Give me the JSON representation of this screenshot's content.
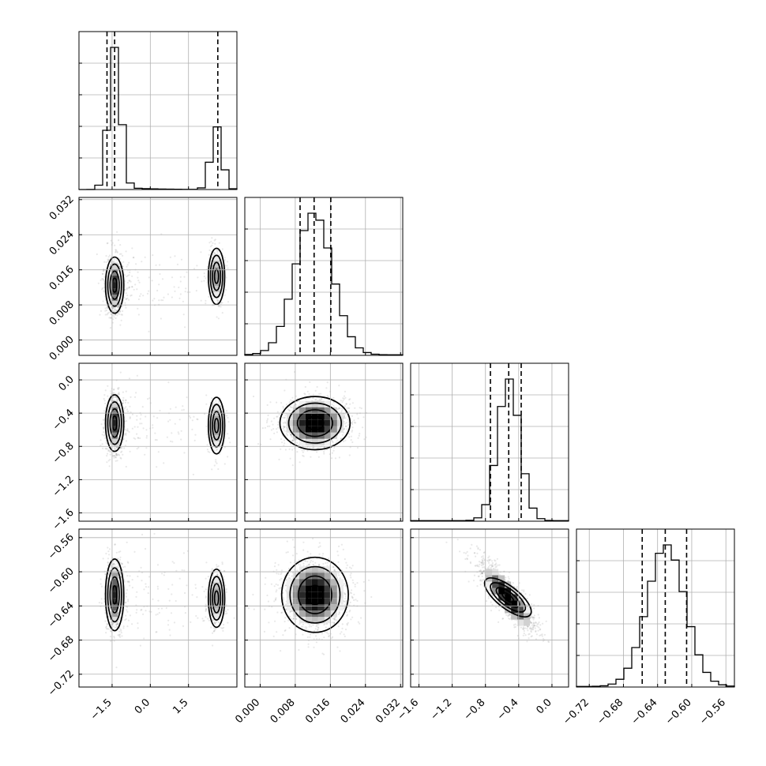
{
  "chart_data": {
    "type": "corner",
    "grid_on": true,
    "parameters": [
      {
        "range": [
          -2.8,
          3.4
        ],
        "ticks": [
          -1.5,
          0.0,
          1.5
        ],
        "tick_labels": [
          "−1.5",
          "0.0",
          "1.5"
        ],
        "histogram_peaks": [
          {
            "center": -1.4,
            "width": 0.22,
            "relative_height": 1.0
          },
          {
            "center": 2.6,
            "width": 0.2,
            "relative_height": 0.45
          }
        ],
        "quantiles": [
          -1.7,
          -1.4,
          2.65
        ]
      },
      {
        "range": [
          -0.0035,
          0.0325
        ],
        "ticks": [
          0.0,
          0.008,
          0.016,
          0.024,
          0.032
        ],
        "tick_labels": [
          "0.000",
          "0.008",
          "0.016",
          "0.024",
          "0.032"
        ],
        "histogram_peaks": [
          {
            "center": 0.0122,
            "width": 0.0042,
            "relative_height": 1.0
          }
        ],
        "quantiles": [
          0.0091,
          0.0123,
          0.0161
        ]
      },
      {
        "range": [
          -1.7,
          0.2
        ],
        "ticks": [
          -1.6,
          -1.2,
          -0.8,
          -0.4,
          0.0
        ],
        "tick_labels": [
          "−1.6",
          "−1.2",
          "−0.8",
          "−0.4",
          "0.0"
        ],
        "histogram_peaks": [
          {
            "center": -0.52,
            "width": 0.13,
            "relative_height": 1.0
          }
        ],
        "quantiles": [
          -0.74,
          -0.52,
          -0.37
        ]
      },
      {
        "range": [
          -0.735,
          -0.55
        ],
        "ticks": [
          -0.72,
          -0.68,
          -0.64,
          -0.6,
          -0.56
        ],
        "tick_labels": [
          "−0.72",
          "−0.68",
          "−0.64",
          "−0.60",
          "−0.56"
        ],
        "histogram_peaks": [
          {
            "center": -0.63,
            "width": 0.022,
            "relative_height": 1.0
          }
        ],
        "quantiles": [
          -0.658,
          -0.631,
          -0.606
        ]
      }
    ],
    "pair_distributions": [
      {
        "x": 0,
        "y": 1,
        "clusters": [
          {
            "center": [
              -1.4,
              0.0125
            ],
            "spread": [
              0.18,
              0.0032
            ],
            "weight": 0.69
          },
          {
            "center": [
              2.6,
              0.0145
            ],
            "spread": [
              0.16,
              0.0032
            ],
            "weight": 0.31
          }
        ]
      },
      {
        "x": 0,
        "y": 2,
        "clusters": [
          {
            "center": [
              -1.4,
              -0.52
            ],
            "spread": [
              0.18,
              0.17
            ],
            "weight": 0.69
          },
          {
            "center": [
              2.6,
              -0.55
            ],
            "spread": [
              0.16,
              0.17
            ],
            "weight": 0.31
          }
        ]
      },
      {
        "x": 0,
        "y": 3,
        "clusters": [
          {
            "center": [
              -1.4,
              -0.627
            ],
            "spread": [
              0.18,
              0.021
            ],
            "weight": 0.69
          },
          {
            "center": [
              2.6,
              -0.631
            ],
            "spread": [
              0.16,
              0.017
            ],
            "weight": 0.31
          }
        ]
      },
      {
        "x": 1,
        "y": 2,
        "clusters": [
          {
            "center": [
              0.0125,
              -0.52
            ],
            "spread": [
              0.004,
              0.16
            ],
            "weight": 1.0
          }
        ]
      },
      {
        "x": 1,
        "y": 3,
        "clusters": [
          {
            "center": [
              0.0125,
              -0.627
            ],
            "spread": [
              0.0038,
              0.022
            ],
            "weight": 1.0
          }
        ]
      },
      {
        "x": 2,
        "y": 3,
        "clusters": [
          {
            "center": [
              -0.53,
              -0.63
            ],
            "spread": [
              0.17,
              0.021
            ],
            "weight": 1.0,
            "correlation": -0.85
          }
        ]
      }
    ]
  }
}
